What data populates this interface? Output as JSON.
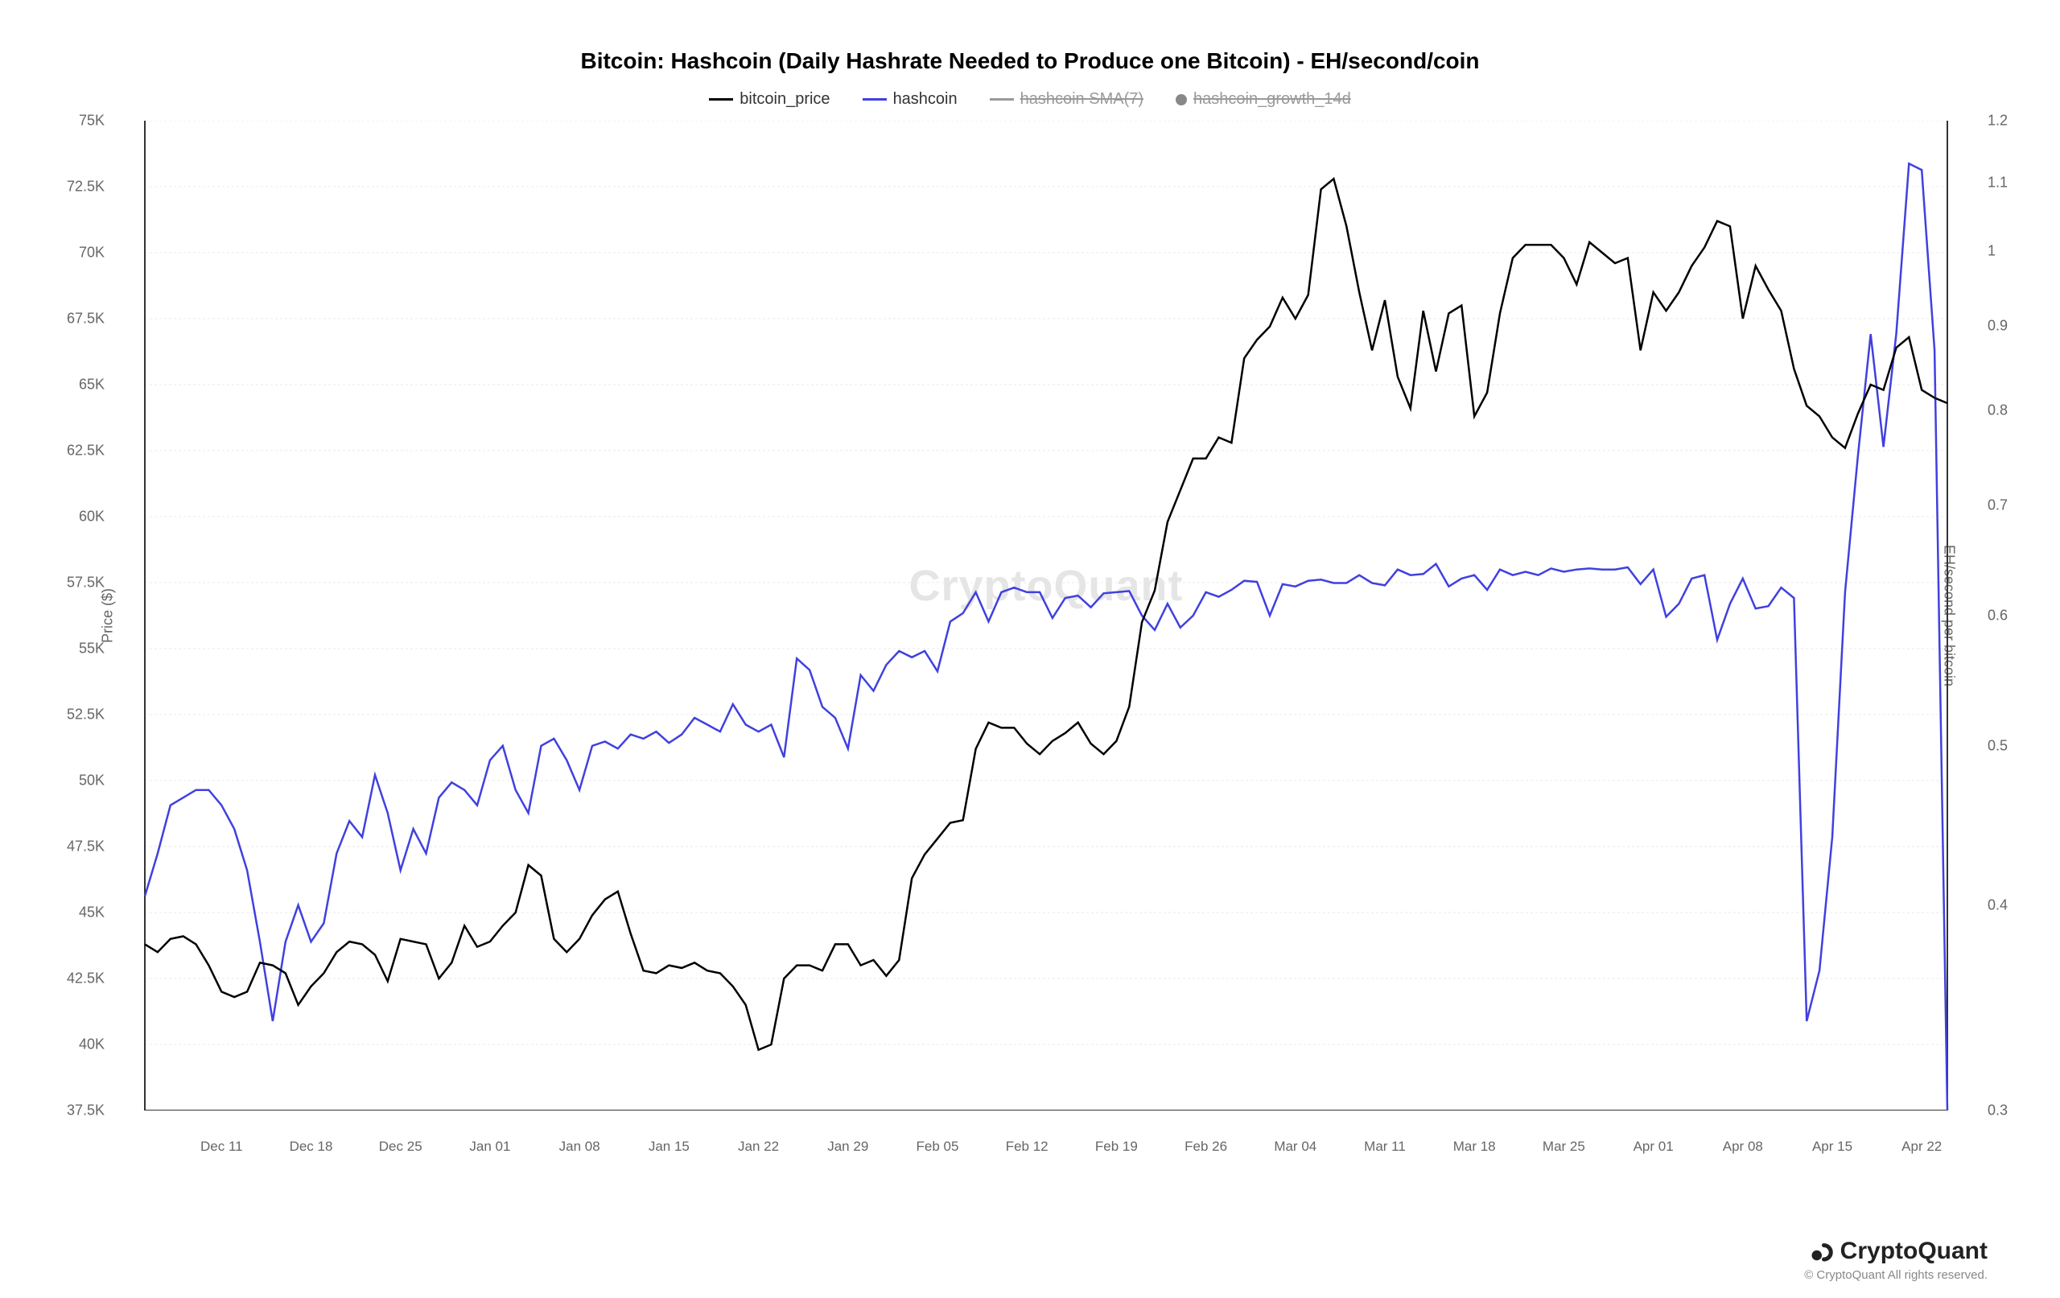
{
  "chart": {
    "title": "Bitcoin: Hashcoin (Daily Hashrate Needed to Produce one Bitcoin) - EH/second/coin",
    "watermark": "CryptoQuant",
    "background_color": "#ffffff",
    "grid_color": "#e8e8e8",
    "axis_color": "#333333",
    "title_fontsize": 28,
    "label_fontsize": 18,
    "tick_fontsize": 18,
    "legend": [
      {
        "label": "bitcoin_price",
        "color": "#000000",
        "type": "line",
        "enabled": true
      },
      {
        "label": "hashcoin",
        "color": "#4040e0",
        "type": "line",
        "enabled": true
      },
      {
        "label": "hashcoin SMA(7)",
        "color": "#999999",
        "type": "line",
        "enabled": false
      },
      {
        "label": "hashcoin_growth_14d",
        "color": "#888888",
        "type": "dot",
        "enabled": false
      }
    ],
    "y_left": {
      "label": "Price ($)",
      "min": 37500,
      "max": 75000,
      "ticks": [
        37500,
        40000,
        42500,
        45000,
        47500,
        50000,
        52500,
        55000,
        57500,
        60000,
        62500,
        65000,
        67500,
        70000,
        72500,
        75000
      ],
      "tick_labels": [
        "37.5K",
        "40K",
        "42.5K",
        "45K",
        "47.5K",
        "50K",
        "52.5K",
        "55K",
        "57.5K",
        "60K",
        "62.5K",
        "65K",
        "67.5K",
        "70K",
        "72.5K",
        "75K"
      ]
    },
    "y_right": {
      "label": "EH/second per bitcoin",
      "min": 0.3,
      "max": 1.2,
      "scale": "log",
      "ticks": [
        0.3,
        0.4,
        0.5,
        0.6,
        0.7,
        0.8,
        0.9,
        1.0,
        1.1,
        1.2
      ],
      "tick_labels": [
        "0.3",
        "0.4",
        "0.5",
        "0.6",
        "0.7",
        "0.8",
        "0.9",
        "1",
        "1.1",
        "1.2"
      ]
    },
    "x": {
      "ticks": [
        "Dec 11",
        "Dec 18",
        "Dec 25",
        "Jan 01",
        "Jan 08",
        "Jan 15",
        "Jan 22",
        "Jan 29",
        "Feb 05",
        "Feb 12",
        "Feb 19",
        "Feb 26",
        "Mar 04",
        "Mar 11",
        "Mar 18",
        "Mar 25",
        "Apr 01",
        "Apr 08",
        "Apr 15",
        "Apr 22"
      ],
      "range_days": 142
    },
    "series": {
      "bitcoin_price": {
        "color": "#000000",
        "line_width": 2.5,
        "values": [
          43800,
          43500,
          44000,
          44100,
          43800,
          43000,
          42000,
          41800,
          42000,
          43100,
          43000,
          42700,
          41500,
          42200,
          42700,
          43500,
          43900,
          43800,
          43400,
          42400,
          44000,
          43900,
          43800,
          42500,
          43100,
          44500,
          43700,
          43900,
          44500,
          45000,
          46800,
          46400,
          44000,
          43500,
          44000,
          44900,
          45500,
          45800,
          44200,
          42800,
          42700,
          43000,
          42900,
          43100,
          42800,
          42700,
          42200,
          41500,
          39800,
          40000,
          42500,
          43000,
          43000,
          42800,
          43800,
          43800,
          43000,
          43200,
          42600,
          43200,
          46300,
          47200,
          47800,
          48400,
          48500,
          51200,
          52200,
          52000,
          52000,
          51400,
          51000,
          51500,
          51800,
          52200,
          51400,
          51000,
          51500,
          52800,
          56000,
          57200,
          59800,
          61000,
          62200,
          62200,
          63000,
          62800,
          66000,
          66700,
          67200,
          68300,
          67500,
          68400,
          72400,
          72800,
          71000,
          68500,
          66300,
          68200,
          65300,
          64100,
          67800,
          65500,
          67700,
          68000,
          63800,
          64700,
          67700,
          69800,
          70300,
          70300,
          70300,
          69800,
          68800,
          70400,
          70000,
          69600,
          69800,
          66300,
          68500,
          67800,
          68500,
          69500,
          70200,
          71200,
          71000,
          67500,
          69500,
          68600,
          67800,
          65600,
          64200,
          63800,
          63000,
          62600,
          63900,
          65000,
          64800,
          66400,
          66800,
          64800,
          64500,
          64300
        ]
      },
      "hashcoin": {
        "color": "#4040e0",
        "line_width": 2.5,
        "values": [
          0.405,
          0.43,
          0.46,
          0.465,
          0.47,
          0.47,
          0.46,
          0.445,
          0.42,
          0.38,
          0.34,
          0.38,
          0.4,
          0.38,
          0.39,
          0.43,
          0.45,
          0.44,
          0.48,
          0.455,
          0.42,
          0.445,
          0.43,
          0.465,
          0.475,
          0.47,
          0.46,
          0.49,
          0.5,
          0.47,
          0.455,
          0.5,
          0.505,
          0.49,
          0.47,
          0.5,
          0.503,
          0.498,
          0.508,
          0.505,
          0.51,
          0.502,
          0.508,
          0.52,
          0.515,
          0.51,
          0.53,
          0.515,
          0.51,
          0.515,
          0.492,
          0.565,
          0.556,
          0.528,
          0.52,
          0.498,
          0.552,
          0.54,
          0.56,
          0.571,
          0.566,
          0.571,
          0.555,
          0.595,
          0.602,
          0.62,
          0.595,
          0.62,
          0.624,
          0.62,
          0.62,
          0.598,
          0.615,
          0.617,
          0.607,
          0.619,
          0.62,
          0.621,
          0.6,
          0.588,
          0.61,
          0.59,
          0.6,
          0.62,
          0.616,
          0.622,
          0.63,
          0.629,
          0.6,
          0.627,
          0.625,
          0.63,
          0.631,
          0.628,
          0.628,
          0.635,
          0.628,
          0.626,
          0.64,
          0.635,
          0.636,
          0.645,
          0.625,
          0.632,
          0.635,
          0.622,
          0.64,
          0.635,
          0.638,
          0.635,
          0.641,
          0.638,
          0.64,
          0.641,
          0.64,
          0.64,
          0.642,
          0.627,
          0.64,
          0.599,
          0.61,
          0.632,
          0.635,
          0.58,
          0.61,
          0.632,
          0.606,
          0.608,
          0.624,
          0.615,
          0.34,
          0.365,
          0.44,
          0.62,
          0.75,
          0.89,
          0.76,
          0.89,
          1.13,
          1.12,
          0.87,
          0.3
        ]
      }
    }
  },
  "footer": {
    "brand": "CryptoQuant",
    "copyright": "© CryptoQuant All rights reserved."
  }
}
